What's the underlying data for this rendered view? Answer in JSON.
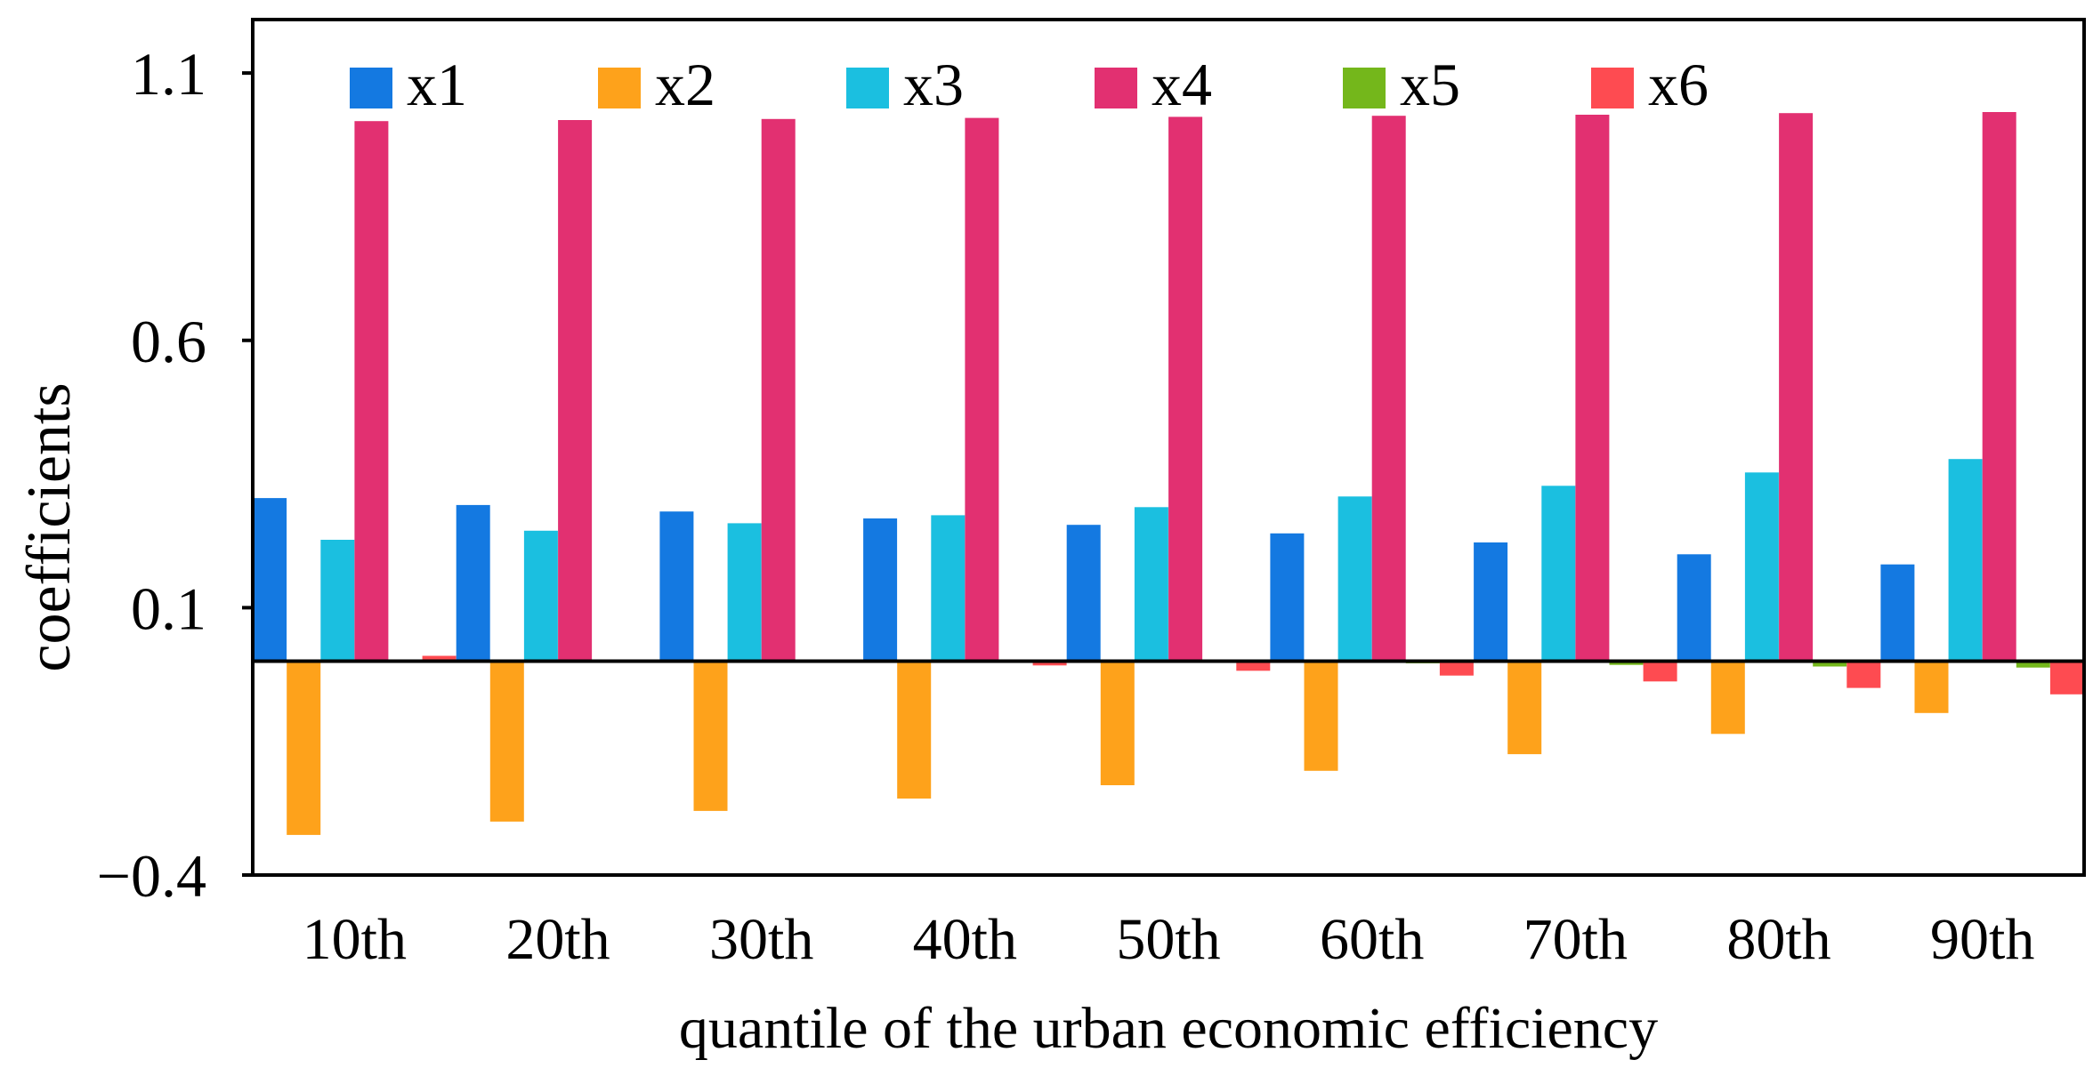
{
  "chart_data": {
    "type": "bar",
    "title": "",
    "xlabel": "quantile of the urban economic efficiency",
    "ylabel": "coefficients",
    "categories": [
      "10th",
      "20th",
      "30th",
      "40th",
      "50th",
      "60th",
      "70th",
      "80th",
      "90th"
    ],
    "ylim": [
      -0.4,
      1.2
    ],
    "yticks": [
      1.1,
      0.6,
      0.1,
      -0.4
    ],
    "ytick_labels": [
      "1.1",
      "0.6",
      "0.1",
      "−0.4"
    ],
    "grid": false,
    "legend_position": "top",
    "series": [
      {
        "name": "x1",
        "color": "#1479e1",
        "values": [
          0.305,
          0.292,
          0.28,
          0.267,
          0.255,
          0.239,
          0.222,
          0.2,
          0.181
        ]
      },
      {
        "name": "x2",
        "color": "#fea21b",
        "values": [
          -0.325,
          -0.3,
          -0.28,
          -0.257,
          -0.232,
          -0.205,
          -0.174,
          -0.136,
          -0.097
        ]
      },
      {
        "name": "x3",
        "color": "#1bbfe0",
        "values": [
          0.227,
          0.244,
          0.258,
          0.273,
          0.288,
          0.308,
          0.328,
          0.353,
          0.378
        ]
      },
      {
        "name": "x4",
        "color": "#e23071",
        "values": [
          1.01,
          1.012,
          1.014,
          1.016,
          1.018,
          1.02,
          1.022,
          1.025,
          1.027
        ]
      },
      {
        "name": "x5",
        "color": "#74b71b",
        "values": [
          0.0,
          0.0,
          0.0,
          0.0,
          0.0,
          -0.004,
          -0.007,
          -0.01,
          -0.012
        ]
      },
      {
        "name": "x6",
        "color": "#fe4b51",
        "values": [
          0.01,
          0.002,
          0.0,
          -0.008,
          -0.018,
          -0.027,
          -0.038,
          -0.05,
          -0.062
        ]
      }
    ]
  }
}
